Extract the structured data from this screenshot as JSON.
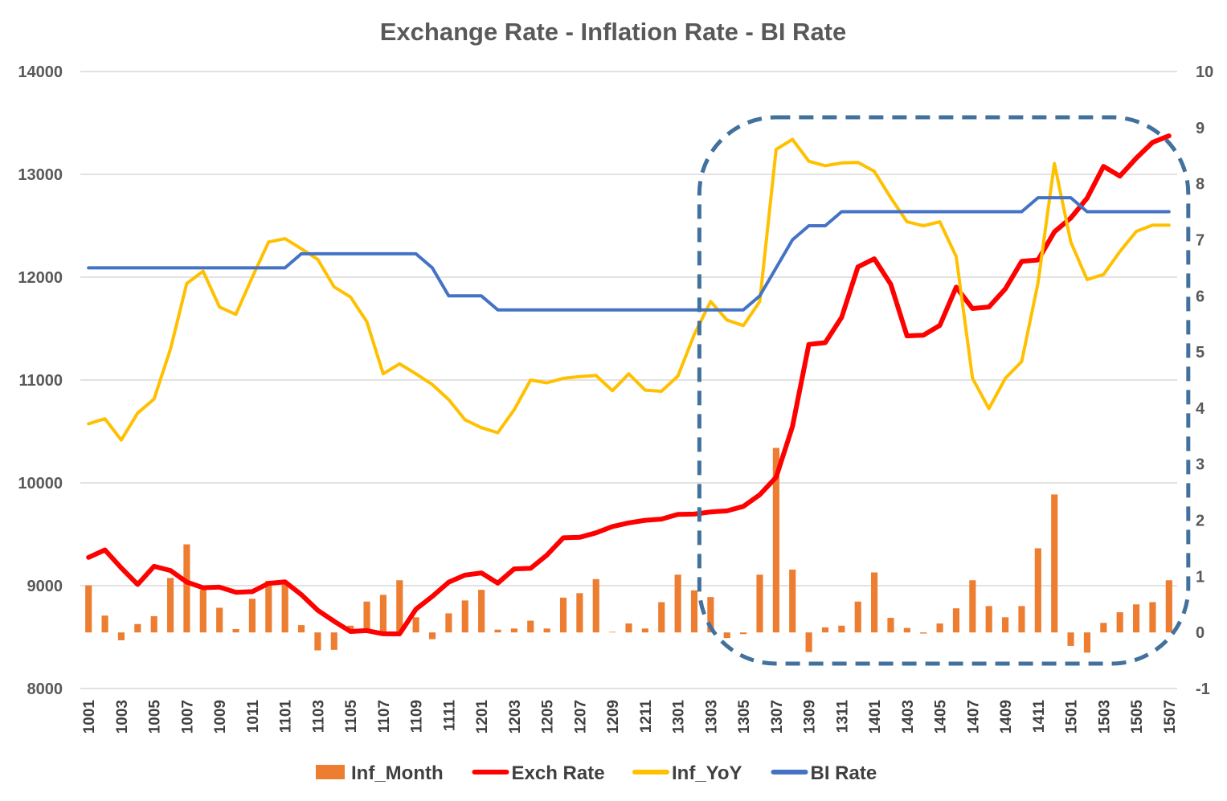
{
  "chart_data": {
    "type": "line",
    "title": "Exchange Rate - Inflation Rate - BI Rate",
    "xlabel": "",
    "ylabel": "",
    "y_left_lim": [
      8000,
      14000
    ],
    "y_left_ticks": [
      "8000",
      "9000",
      "10000",
      "11000",
      "12000",
      "13000",
      "14000"
    ],
    "y_right_lim": [
      -1,
      10
    ],
    "y_right_ticks": [
      "-1",
      "0",
      "1",
      "2",
      "3",
      "4",
      "5",
      "6",
      "7",
      "8",
      "9",
      "10"
    ],
    "grid": true,
    "legend_position": "bottom",
    "categories": [
      "1001",
      "1002",
      "1003",
      "1004",
      "1005",
      "1006",
      "1007",
      "1008",
      "1009",
      "1010",
      "1011",
      "1012",
      "1101",
      "1102",
      "1103",
      "1104",
      "1105",
      "1106",
      "1107",
      "1108",
      "1109",
      "1110",
      "1111",
      "1112",
      "1201",
      "1202",
      "1203",
      "1204",
      "1205",
      "1206",
      "1207",
      "1208",
      "1209",
      "1210",
      "1211",
      "1212",
      "1301",
      "1302",
      "1303",
      "1304",
      "1305",
      "1306",
      "1307",
      "1308",
      "1309",
      "1310",
      "1311",
      "1312",
      "1401",
      "1402",
      "1403",
      "1404",
      "1405",
      "1406",
      "1407",
      "1408",
      "1409",
      "1410",
      "1411",
      "1412",
      "1501",
      "1502",
      "1503",
      "1504",
      "1505",
      "1506",
      "1507"
    ],
    "x_tick_labels": [
      "1001",
      "1003",
      "1005",
      "1007",
      "1009",
      "1011",
      "1101",
      "1103",
      "1105",
      "1107",
      "1109",
      "1111",
      "1201",
      "1203",
      "1205",
      "1207",
      "1209",
      "1211",
      "1301",
      "1303",
      "1305",
      "1307",
      "1309",
      "1311",
      "1401",
      "1403",
      "1405",
      "1407",
      "1409",
      "1411",
      "1501",
      "1503",
      "1505",
      "1507"
    ],
    "series": [
      {
        "name": "Inf_Month",
        "kind": "bar",
        "axis": "right",
        "color": "#ED7D31",
        "values": [
          0.84,
          0.3,
          -0.14,
          0.15,
          0.29,
          0.97,
          1.57,
          0.76,
          0.44,
          0.06,
          0.6,
          0.92,
          0.89,
          0.13,
          -0.32,
          -0.31,
          0.12,
          0.55,
          0.67,
          0.93,
          0.27,
          -0.12,
          0.34,
          0.57,
          0.76,
          0.05,
          0.07,
          0.21,
          0.07,
          0.62,
          0.7,
          0.95,
          0.01,
          0.16,
          0.07,
          0.54,
          1.03,
          0.75,
          0.63,
          -0.1,
          -0.03,
          1.03,
          3.29,
          1.12,
          -0.35,
          0.09,
          0.12,
          0.55,
          1.07,
          0.26,
          0.08,
          -0.02,
          0.16,
          0.43,
          0.93,
          0.47,
          0.27,
          0.47,
          1.5,
          2.46,
          -0.24,
          -0.36,
          0.17,
          0.36,
          0.5,
          0.54,
          0.93
        ]
      },
      {
        "name": "Exch Rate",
        "kind": "line",
        "axis": "left",
        "color": "#FF0000",
        "values": [
          9275,
          9348,
          9173,
          9012,
          9188,
          9148,
          9035,
          8980,
          8986,
          8936,
          8942,
          9023,
          9037,
          8913,
          8761,
          8654,
          8555,
          8563,
          8532,
          8531,
          8771,
          8895,
          9034,
          9103,
          9124,
          9025,
          9163,
          9169,
          9298,
          9466,
          9470,
          9514,
          9575,
          9611,
          9636,
          9648,
          9694,
          9696,
          9717,
          9727,
          9771,
          9884,
          10055,
          10547,
          11346,
          11363,
          11609,
          12100,
          12179,
          11932,
          11429,
          11436,
          11531,
          11903,
          11695,
          11710,
          11886,
          12154,
          12167,
          12441,
          12576,
          12769,
          13077,
          12983,
          13158,
          13311,
          13374
        ]
      },
      {
        "name": "Inf_YoY",
        "kind": "line",
        "axis": "right",
        "color": "#FFC000",
        "values": [
          3.72,
          3.81,
          3.43,
          3.91,
          4.16,
          5.05,
          6.22,
          6.44,
          5.8,
          5.67,
          6.33,
          6.96,
          7.02,
          6.84,
          6.65,
          6.16,
          5.98,
          5.54,
          4.61,
          4.79,
          4.61,
          4.42,
          4.15,
          3.79,
          3.65,
          3.56,
          3.97,
          4.5,
          4.45,
          4.53,
          4.56,
          4.58,
          4.31,
          4.61,
          4.32,
          4.3,
          4.57,
          5.31,
          5.9,
          5.57,
          5.47,
          5.9,
          8.61,
          8.79,
          8.4,
          8.32,
          8.37,
          8.38,
          8.22,
          7.75,
          7.32,
          7.25,
          7.32,
          6.7,
          4.53,
          3.99,
          4.53,
          4.83,
          6.23,
          8.36,
          6.96,
          6.29,
          6.38,
          6.79,
          7.15,
          7.26,
          7.26
        ]
      },
      {
        "name": "BI Rate",
        "kind": "line",
        "axis": "right",
        "color": "#4472C4",
        "values": [
          6.5,
          6.5,
          6.5,
          6.5,
          6.5,
          6.5,
          6.5,
          6.5,
          6.5,
          6.5,
          6.5,
          6.5,
          6.5,
          6.75,
          6.75,
          6.75,
          6.75,
          6.75,
          6.75,
          6.75,
          6.75,
          6.5,
          6.0,
          6.0,
          6.0,
          5.75,
          5.75,
          5.75,
          5.75,
          5.75,
          5.75,
          5.75,
          5.75,
          5.75,
          5.75,
          5.75,
          5.75,
          5.75,
          5.75,
          5.75,
          5.75,
          6.0,
          6.5,
          7.0,
          7.25,
          7.25,
          7.5,
          7.5,
          7.5,
          7.5,
          7.5,
          7.5,
          7.5,
          7.5,
          7.5,
          7.5,
          7.5,
          7.5,
          7.75,
          7.75,
          7.75,
          7.5,
          7.5,
          7.5,
          7.5,
          7.5,
          7.5
        ]
      }
    ],
    "legend": [
      "Inf_Month",
      "Exch Rate",
      "Inf_YoY",
      "BI Rate"
    ],
    "annotation": {
      "shape": "dashed rounded rectangle",
      "color": "#41719C",
      "covers_categories": [
        "1303",
        "1507"
      ]
    },
    "colors": {
      "title": "#595959",
      "tick_labels": "#595959",
      "grid": "#D9D9D9"
    }
  }
}
